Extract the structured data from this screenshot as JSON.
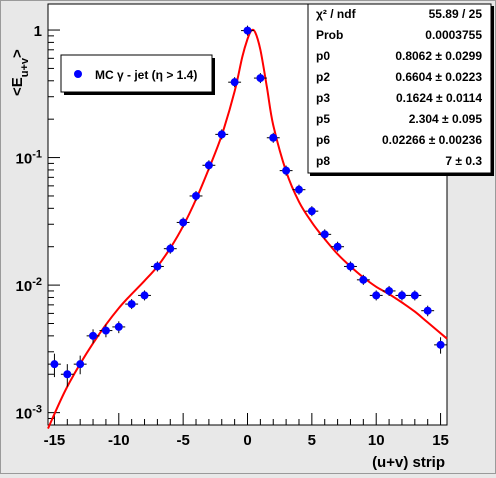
{
  "chart_data": {
    "type": "scatter",
    "xlabel": "(u+v) strip",
    "ylabel": "<E_{u+v}>",
    "xlim": [
      -15.5,
      15.5
    ],
    "ylim": [
      0.0008,
      1.6
    ],
    "yscale": "log",
    "x_ticks": [
      "-15",
      "-10",
      "-5",
      "0",
      "5",
      "10",
      "15"
    ],
    "y_ticks": [
      {
        "value": 1,
        "label": "1"
      },
      {
        "value": 0.1,
        "label": "10",
        "exp": "-1"
      },
      {
        "value": 0.01,
        "label": "10",
        "exp": "-2"
      },
      {
        "value": 0.001,
        "label": "10",
        "exp": "-3"
      }
    ],
    "grid": false,
    "legend": {
      "position": "top-left",
      "entries": [
        {
          "label": "MC γ - jet (η > 1.4)",
          "color": "#0000ff"
        }
      ]
    },
    "series": [
      {
        "name": "MC γ - jet (η > 1.4)",
        "marker_color": "#0000ff",
        "points": [
          {
            "x": -15,
            "y": 0.0024,
            "yerr": 0.0005
          },
          {
            "x": -14,
            "y": 0.002,
            "yerr": 0.0004
          },
          {
            "x": -13,
            "y": 0.0024,
            "yerr": 0.0004
          },
          {
            "x": -12,
            "y": 0.004,
            "yerr": 0.0005
          },
          {
            "x": -11,
            "y": 0.0044,
            "yerr": 0.0005
          },
          {
            "x": -10,
            "y": 0.0047,
            "yerr": 0.0005
          },
          {
            "x": -9,
            "y": 0.0071,
            "yerr": 0.0005
          },
          {
            "x": -8,
            "y": 0.0083,
            "yerr": 0.0006
          },
          {
            "x": -7,
            "y": 0.014,
            "yerr": 0.0008
          },
          {
            "x": -6,
            "y": 0.0193,
            "yerr": 0.001
          },
          {
            "x": -5,
            "y": 0.031,
            "yerr": 0.0015
          },
          {
            "x": -4,
            "y": 0.05,
            "yerr": 0.002
          },
          {
            "x": -3,
            "y": 0.087,
            "yerr": 0.003
          },
          {
            "x": -2,
            "y": 0.152,
            "yerr": 0.005
          },
          {
            "x": -1,
            "y": 0.39,
            "yerr": 0.01
          },
          {
            "x": 0,
            "y": 0.99,
            "yerr": 0.02
          },
          {
            "x": 1,
            "y": 0.42,
            "yerr": 0.01
          },
          {
            "x": 2,
            "y": 0.143,
            "yerr": 0.005
          },
          {
            "x": 3,
            "y": 0.079,
            "yerr": 0.003
          },
          {
            "x": 4,
            "y": 0.056,
            "yerr": 0.002
          },
          {
            "x": 5,
            "y": 0.038,
            "yerr": 0.0015
          },
          {
            "x": 6,
            "y": 0.025,
            "yerr": 0.001
          },
          {
            "x": 7,
            "y": 0.02,
            "yerr": 0.001
          },
          {
            "x": 8,
            "y": 0.014,
            "yerr": 0.0008
          },
          {
            "x": 9,
            "y": 0.011,
            "yerr": 0.0007
          },
          {
            "x": 10,
            "y": 0.0083,
            "yerr": 0.0006
          },
          {
            "x": 11,
            "y": 0.009,
            "yerr": 0.0006
          },
          {
            "x": 12,
            "y": 0.0083,
            "yerr": 0.0006
          },
          {
            "x": 13,
            "y": 0.0083,
            "yerr": 0.0006
          },
          {
            "x": 14,
            "y": 0.0063,
            "yerr": 0.0006
          },
          {
            "x": 15,
            "y": 0.0034,
            "yerr": 0.0005
          }
        ]
      },
      {
        "name": "",
        "kind": "fit-curve",
        "line_color": "#ff0000",
        "points": [
          {
            "x": -15.5,
            "y": 0.00075
          },
          {
            "x": -14,
            "y": 0.0016
          },
          {
            "x": -12,
            "y": 0.0035
          },
          {
            "x": -10,
            "y": 0.0066
          },
          {
            "x": -8,
            "y": 0.0108
          },
          {
            "x": -7,
            "y": 0.014
          },
          {
            "x": -6,
            "y": 0.0195
          },
          {
            "x": -5,
            "y": 0.029
          },
          {
            "x": -4,
            "y": 0.047
          },
          {
            "x": -3,
            "y": 0.082
          },
          {
            "x": -2,
            "y": 0.15
          },
          {
            "x": -1,
            "y": 0.33
          },
          {
            "x": -0.4,
            "y": 0.62
          },
          {
            "x": 0,
            "y": 0.85
          },
          {
            "x": 0.3,
            "y": 0.99
          },
          {
            "x": 0.6,
            "y": 0.96
          },
          {
            "x": 1,
            "y": 0.7
          },
          {
            "x": 1.5,
            "y": 0.36
          },
          {
            "x": 2,
            "y": 0.18
          },
          {
            "x": 3,
            "y": 0.078
          },
          {
            "x": 4,
            "y": 0.045
          },
          {
            "x": 5,
            "y": 0.031
          },
          {
            "x": 6,
            "y": 0.023
          },
          {
            "x": 7,
            "y": 0.0175
          },
          {
            "x": 8,
            "y": 0.014
          },
          {
            "x": 9,
            "y": 0.0115
          },
          {
            "x": 10,
            "y": 0.0097
          },
          {
            "x": 11,
            "y": 0.0085
          },
          {
            "x": 12,
            "y": 0.0073
          },
          {
            "x": 13,
            "y": 0.0062
          },
          {
            "x": 14,
            "y": 0.0051
          },
          {
            "x": 15.5,
            "y": 0.0038
          }
        ]
      }
    ],
    "stats_box": [
      {
        "name": "χ² / ndf",
        "value": "55.89 / 25"
      },
      {
        "name": "Prob",
        "value": "0.0003755"
      },
      {
        "name": "p0",
        "value": "0.8062 ± 0.0299"
      },
      {
        "name": "p2",
        "value": "0.6604 ± 0.0223"
      },
      {
        "name": "p3",
        "value": "0.1624 ± 0.0114"
      },
      {
        "name": "p5",
        "value": "2.304 ± 0.095"
      },
      {
        "name": "p6",
        "value": "0.02266 ± 0.00236"
      },
      {
        "name": "p8",
        "value": "7 ± 0.3"
      }
    ]
  }
}
